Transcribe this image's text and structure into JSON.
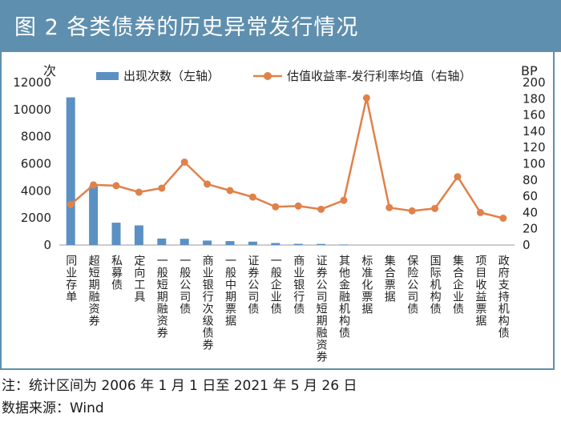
{
  "figure": {
    "title": "图 2   各类债券的历史异常发行情况",
    "note": "注：统计区间为 2006 年 1 月 1 日至 2021 年 5 月 26 日",
    "source": "数据来源：Wind"
  },
  "colors": {
    "header": "#5f8fae",
    "bar": "#5b90c3",
    "line": "#e0814a"
  },
  "chart_data": {
    "type": "bar+line",
    "categories": [
      "同业存单",
      "超短期融资券",
      "私募债",
      "定向工具",
      "一般短期融资券",
      "一般公司债",
      "商业银行次级债券",
      "一般中期票据",
      "证券公司债",
      "一般企业债",
      "商业银行债",
      "证券公司短期融资券",
      "其他金融机构债",
      "标准化票据",
      "集合票据",
      "保险公司债",
      "国际机构债",
      "集合企业债",
      "项目收益票据",
      "政府支持机构债"
    ],
    "series": [
      {
        "name": "出现次数（左轴）",
        "type": "bar",
        "axis": "left",
        "values": [
          10900,
          4350,
          1650,
          1450,
          480,
          460,
          330,
          290,
          250,
          150,
          90,
          80,
          40,
          0,
          0,
          0,
          0,
          0,
          0,
          0
        ]
      },
      {
        "name": "估值收益率-发行利率均值（右轴）",
        "type": "line",
        "axis": "right",
        "values": [
          50,
          74,
          73,
          65,
          70,
          102,
          75,
          67,
          59,
          47,
          48,
          44,
          55,
          181,
          46,
          42,
          45,
          84,
          40,
          33
        ]
      }
    ],
    "y_left": {
      "label": "次",
      "min": 0,
      "max": 12000,
      "step": 2000,
      "ticks": [
        "0",
        "2000",
        "4000",
        "6000",
        "8000",
        "10000",
        "12000"
      ]
    },
    "y_right": {
      "label": "BP",
      "min": 0,
      "max": 200,
      "step": 20,
      "ticks": [
        "0",
        "20",
        "40",
        "60",
        "80",
        "100",
        "120",
        "140",
        "160",
        "180",
        "200"
      ]
    },
    "legend": {
      "position": "top",
      "bar_label": "出现次数（左轴）",
      "line_label": "估值收益率-发行利率均值（右轴）"
    },
    "grid": false
  }
}
